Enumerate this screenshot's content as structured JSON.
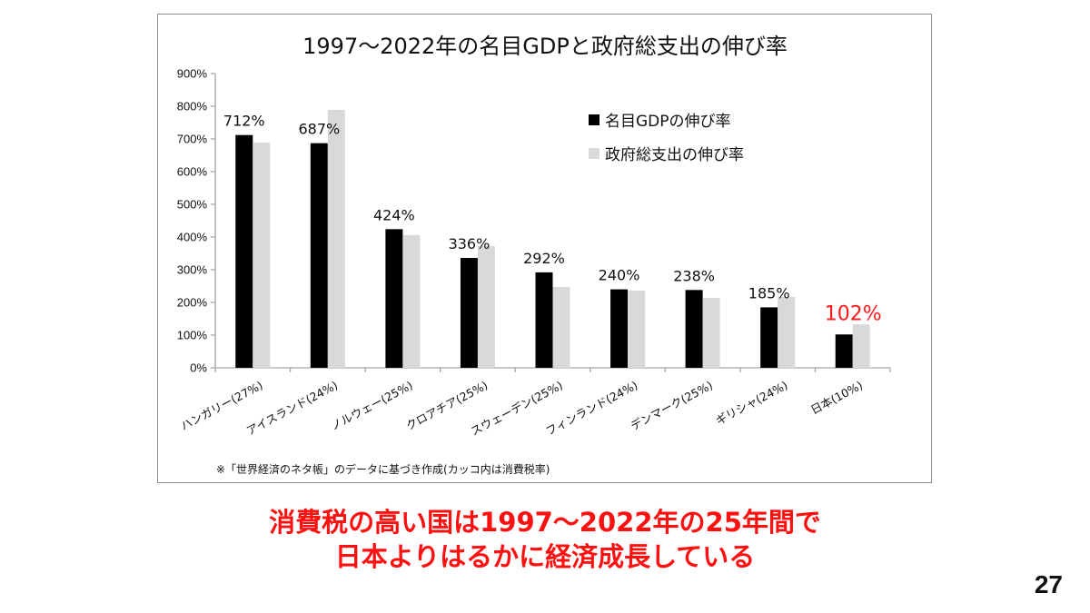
{
  "slide": {
    "caption_lines": [
      "消費税の高い国は1997〜2022年の25年間で",
      "日本よりはるかに経済成長している"
    ],
    "page_number": "27"
  },
  "chart_data": {
    "type": "bar",
    "title": "1997〜2022年の名目GDPと政府総支出の伸び率",
    "xlabel": "",
    "ylabel": "",
    "ylim": [
      0,
      900
    ],
    "yticks": [
      0,
      100,
      200,
      300,
      400,
      500,
      600,
      700,
      800,
      900
    ],
    "ytick_labels": [
      "0%",
      "100%",
      "200%",
      "300%",
      "400%",
      "500%",
      "600%",
      "700%",
      "800%",
      "900%"
    ],
    "grid": false,
    "legend_position": "top-right",
    "categories": [
      "ハンガリー(27%)",
      "アイスランド(24%)",
      "ノルウェー(25%)",
      "クロアチア(25%)",
      "スウェーデン(25%)",
      "フィンランド(24%)",
      "デンマーク(25%)",
      "ギリシャ(24%)",
      "日本(10%)"
    ],
    "series": [
      {
        "name": "名目GDPの伸び率",
        "color": "#000000",
        "values": [
          712,
          687,
          424,
          336,
          292,
          240,
          238,
          185,
          102
        ],
        "data_labels": [
          "712%",
          "687%",
          "424%",
          "336%",
          "292%",
          "240%",
          "238%",
          "185%",
          "102%"
        ]
      },
      {
        "name": "政府総支出の伸び率",
        "color": "#d9d9d9",
        "values": [
          689,
          789,
          406,
          372,
          247,
          236,
          214,
          217,
          133
        ]
      }
    ],
    "highlight_category_index": 8,
    "highlight_color": "#ff1a1a",
    "note": "※「世界経済のネタ帳」のデータに基づき作成(カッコ内は消費税率)"
  }
}
